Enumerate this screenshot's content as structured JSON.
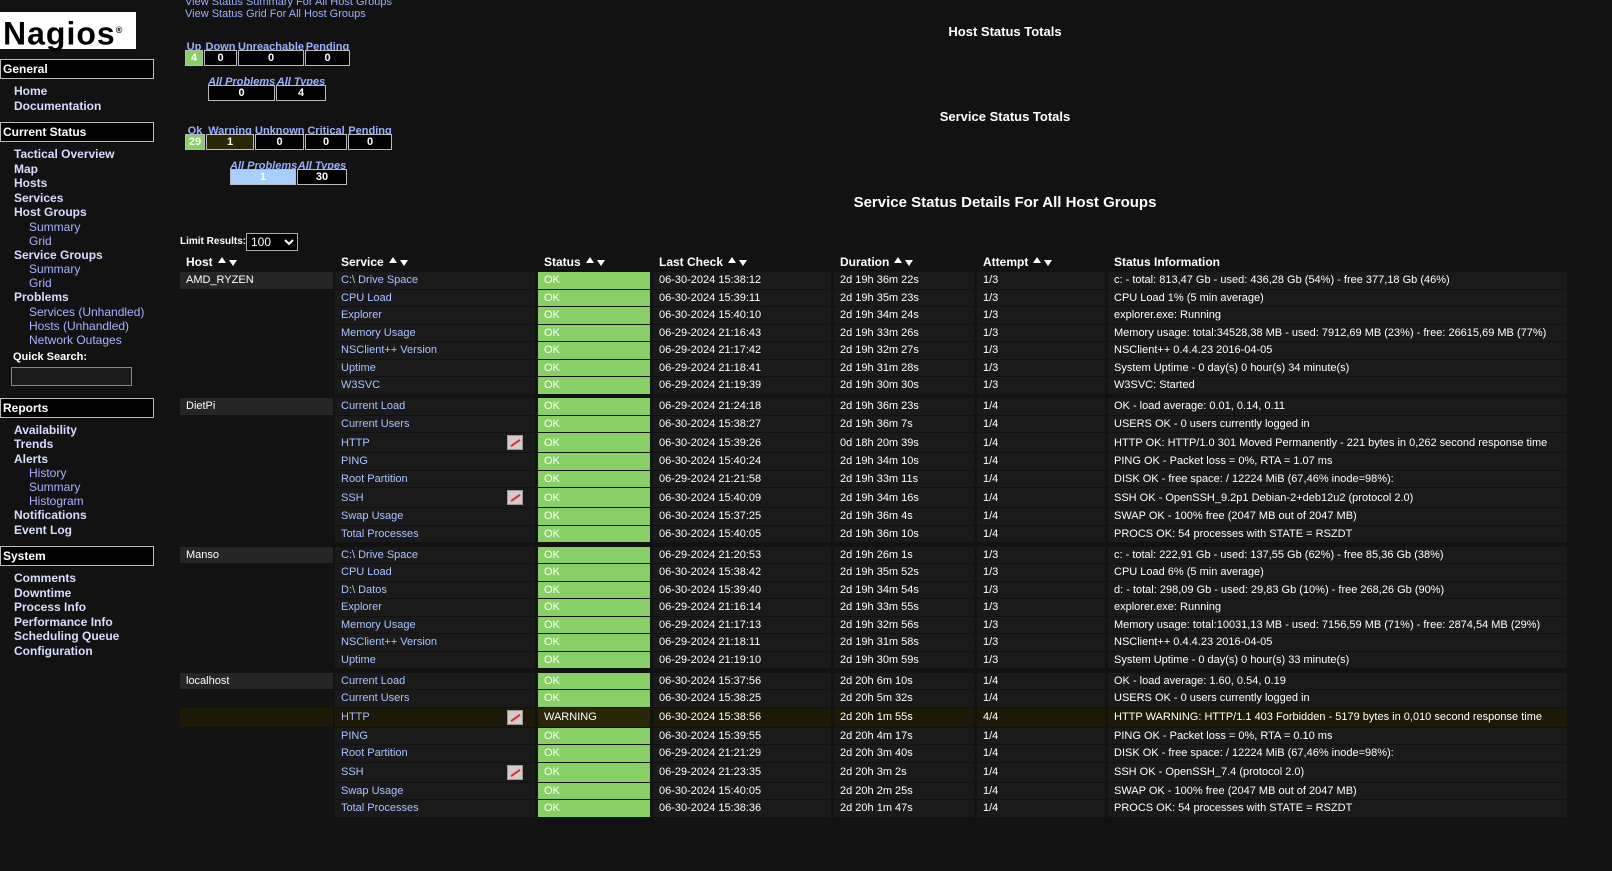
{
  "logo": "Nagios",
  "logo_mark": "®",
  "top_links": [
    "View Status Summary For All Host Groups",
    "View Status Grid For All Host Groups"
  ],
  "sidebar": {
    "quick_search": "Quick Search:",
    "sections": [
      {
        "title": "General",
        "items": [
          {
            "label": "Home"
          },
          {
            "label": "Documentation"
          }
        ]
      },
      {
        "title": "Current Status",
        "items": [
          {
            "label": "Tactical Overview"
          },
          {
            "label": "Map"
          },
          {
            "label": "Hosts"
          },
          {
            "label": "Services"
          },
          {
            "label": "Host Groups",
            "children": [
              "Summary",
              "Grid"
            ]
          },
          {
            "label": "Service Groups",
            "children": [
              "Summary",
              "Grid"
            ]
          },
          {
            "label": "Problems",
            "children": [
              "Services (Unhandled)",
              "Hosts (Unhandled)",
              "Network Outages"
            ]
          }
        ]
      },
      {
        "title": "Reports",
        "items": [
          {
            "label": "Availability"
          },
          {
            "label": "Trends"
          },
          {
            "label": "Alerts",
            "children": [
              "History",
              "Summary",
              "Histogram"
            ]
          },
          {
            "label": "Notifications"
          },
          {
            "label": "Event Log"
          }
        ]
      },
      {
        "title": "System",
        "items": [
          {
            "label": "Comments"
          },
          {
            "label": "Downtime"
          },
          {
            "label": "Process Info"
          },
          {
            "label": "Performance Info"
          },
          {
            "label": "Scheduling Queue"
          },
          {
            "label": "Configuration"
          }
        ]
      }
    ]
  },
  "host_totals": {
    "title": "Host Status Totals",
    "headers": [
      "Up",
      "Down",
      "Unreachable",
      "Pending"
    ],
    "values": [
      4,
      0,
      0,
      0
    ],
    "summary_headers": [
      "All Problems",
      "All Types"
    ],
    "summary_values": [
      0,
      4
    ]
  },
  "service_totals": {
    "title": "Service Status Totals",
    "headers": [
      "Ok",
      "Warning",
      "Unknown",
      "Critical",
      "Pending"
    ],
    "values": [
      29,
      1,
      0,
      0,
      0
    ],
    "summary_headers": [
      "All Problems",
      "All Types"
    ],
    "summary_values": [
      1,
      30
    ]
  },
  "table": {
    "title": "Service Status Details For All Host Groups",
    "limit_label": "Limit Results:",
    "limit_value": 100,
    "headers": [
      "Host",
      "Service",
      "Status",
      "Last Check",
      "Duration",
      "Attempt",
      "Status Information"
    ],
    "groups": [
      {
        "host": "AMD_RYZEN",
        "rows": [
          {
            "service": "C:\\ Drive Space",
            "status": "OK",
            "last_check": "06-30-2024 15:38:12",
            "duration": "2d 19h 36m 22s",
            "attempt": "1/3",
            "info": "c: - total: 813,47 Gb - used: 436,28 Gb (54%) - free 377,18 Gb (46%)"
          },
          {
            "service": "CPU Load",
            "status": "OK",
            "last_check": "06-30-2024 15:39:11",
            "duration": "2d 19h 35m 23s",
            "attempt": "1/3",
            "info": "CPU Load 1% (5 min average)"
          },
          {
            "service": "Explorer",
            "status": "OK",
            "last_check": "06-30-2024 15:40:10",
            "duration": "2d 19h 34m 24s",
            "attempt": "1/3",
            "info": "explorer.exe: Running"
          },
          {
            "service": "Memory Usage",
            "status": "OK",
            "last_check": "06-29-2024 21:16:43",
            "duration": "2d 19h 33m 26s",
            "attempt": "1/3",
            "info": "Memory usage: total:34528,38 MB - used: 7912,69 MB (23%) - free: 26615,69 MB (77%)"
          },
          {
            "service": "NSClient++ Version",
            "status": "OK",
            "last_check": "06-29-2024 21:17:42",
            "duration": "2d 19h 32m 27s",
            "attempt": "1/3",
            "info": "NSClient++ 0.4.4.23 2016-04-05"
          },
          {
            "service": "Uptime",
            "status": "OK",
            "last_check": "06-29-2024 21:18:41",
            "duration": "2d 19h 31m 28s",
            "attempt": "1/3",
            "info": "System Uptime - 0 day(s) 0 hour(s) 34 minute(s)"
          },
          {
            "service": "W3SVC",
            "status": "OK",
            "last_check": "06-29-2024 21:19:39",
            "duration": "2d 19h 30m 30s",
            "attempt": "1/3",
            "info": "W3SVC: Started"
          }
        ]
      },
      {
        "host": "DietPi",
        "rows": [
          {
            "service": "Current Load",
            "status": "OK",
            "last_check": "06-29-2024 21:24:18",
            "duration": "2d 19h 36m 23s",
            "attempt": "1/4",
            "info": "OK - load average: 0.01, 0.14, 0.11"
          },
          {
            "service": "Current Users",
            "status": "OK",
            "last_check": "06-30-2024 15:38:27",
            "duration": "2d 19h 36m 7s",
            "attempt": "1/4",
            "info": "USERS OK - 0 users currently logged in"
          },
          {
            "service": "HTTP",
            "graph": true,
            "status": "OK",
            "last_check": "06-30-2024 15:39:26",
            "duration": "0d 18h 20m 39s",
            "attempt": "1/4",
            "info": "HTTP OK: HTTP/1.0 301 Moved Permanently - 221 bytes in 0,262 second response time"
          },
          {
            "service": "PING",
            "status": "OK",
            "last_check": "06-30-2024 15:40:24",
            "duration": "2d 19h 34m 10s",
            "attempt": "1/4",
            "info": "PING OK - Packet loss = 0%, RTA = 1.07 ms"
          },
          {
            "service": "Root Partition",
            "status": "OK",
            "last_check": "06-29-2024 21:21:58",
            "duration": "2d 19h 33m 11s",
            "attempt": "1/4",
            "info": "DISK OK - free space: / 12224 MiB (67,46% inode=98%):"
          },
          {
            "service": "SSH",
            "graph": true,
            "status": "OK",
            "last_check": "06-30-2024 15:40:09",
            "duration": "2d 19h 34m 16s",
            "attempt": "1/4",
            "info": "SSH OK - OpenSSH_9.2p1 Debian-2+deb12u2 (protocol 2.0)"
          },
          {
            "service": "Swap Usage",
            "status": "OK",
            "last_check": "06-30-2024 15:37:25",
            "duration": "2d 19h 36m 4s",
            "attempt": "1/4",
            "info": "SWAP OK - 100% free (2047 MB out of 2047 MB)"
          },
          {
            "service": "Total Processes",
            "status": "OK",
            "last_check": "06-30-2024 15:40:05",
            "duration": "2d 19h 36m 10s",
            "attempt": "1/4",
            "info": "PROCS OK: 54 processes with STATE = RSZDT"
          }
        ]
      },
      {
        "host": "Manso",
        "rows": [
          {
            "service": "C:\\ Drive Space",
            "status": "OK",
            "last_check": "06-29-2024 21:20:53",
            "duration": "2d 19h 26m 1s",
            "attempt": "1/3",
            "info": "c: - total: 222,91 Gb - used: 137,55 Gb (62%) - free 85,36 Gb (38%)"
          },
          {
            "service": "CPU Load",
            "status": "OK",
            "last_check": "06-30-2024 15:38:42",
            "duration": "2d 19h 35m 52s",
            "attempt": "1/3",
            "info": "CPU Load 6% (5 min average)"
          },
          {
            "service": "D:\\ Datos",
            "status": "OK",
            "last_check": "06-30-2024 15:39:40",
            "duration": "2d 19h 34m 54s",
            "attempt": "1/3",
            "info": "d: - total: 298,09 Gb - used: 29,83 Gb (10%) - free 268,26 Gb (90%)"
          },
          {
            "service": "Explorer",
            "status": "OK",
            "last_check": "06-29-2024 21:16:14",
            "duration": "2d 19h 33m 55s",
            "attempt": "1/3",
            "info": "explorer.exe: Running"
          },
          {
            "service": "Memory Usage",
            "status": "OK",
            "last_check": "06-29-2024 21:17:13",
            "duration": "2d 19h 32m 56s",
            "attempt": "1/3",
            "info": "Memory usage: total:10031,13 MB - used: 7156,59 MB (71%) - free: 2874,54 MB (29%)"
          },
          {
            "service": "NSClient++ Version",
            "status": "OK",
            "last_check": "06-29-2024 21:18:11",
            "duration": "2d 19h 31m 58s",
            "attempt": "1/3",
            "info": "NSClient++ 0.4.4.23 2016-04-05"
          },
          {
            "service": "Uptime",
            "status": "OK",
            "last_check": "06-29-2024 21:19:10",
            "duration": "2d 19h 30m 59s",
            "attempt": "1/3",
            "info": "System Uptime - 0 day(s) 0 hour(s) 33 minute(s)"
          }
        ]
      },
      {
        "host": "localhost",
        "rows": [
          {
            "service": "Current Load",
            "status": "OK",
            "last_check": "06-30-2024 15:37:56",
            "duration": "2d 20h 6m 10s",
            "attempt": "1/4",
            "info": "OK - load average: 1.60, 0.54, 0.19"
          },
          {
            "service": "Current Users",
            "status": "OK",
            "last_check": "06-30-2024 15:38:25",
            "duration": "2d 20h 5m 32s",
            "attempt": "1/4",
            "info": "USERS OK - 0 users currently logged in"
          },
          {
            "service": "HTTP",
            "graph": true,
            "status": "WARNING",
            "last_check": "06-30-2024 15:38:56",
            "duration": "2d 20h 1m 55s",
            "attempt": "4/4",
            "info": "HTTP WARNING: HTTP/1.1 403 Forbidden - 5179 bytes in 0,010 second response time"
          },
          {
            "service": "PING",
            "status": "OK",
            "last_check": "06-30-2024 15:39:55",
            "duration": "2d 20h 4m 17s",
            "attempt": "1/4",
            "info": "PING OK - Packet loss = 0%, RTA = 0.10 ms"
          },
          {
            "service": "Root Partition",
            "status": "OK",
            "last_check": "06-29-2024 21:21:29",
            "duration": "2d 20h 3m 40s",
            "attempt": "1/4",
            "info": "DISK OK - free space: / 12224 MiB (67,46% inode=98%):"
          },
          {
            "service": "SSH",
            "graph": true,
            "status": "OK",
            "last_check": "06-29-2024 21:23:35",
            "duration": "2d 20h 3m 2s",
            "attempt": "1/4",
            "info": "SSH OK - OpenSSH_7.4 (protocol 2.0)"
          },
          {
            "service": "Swap Usage",
            "status": "OK",
            "last_check": "06-30-2024 15:40:05",
            "duration": "2d 20h 2m 25s",
            "attempt": "1/4",
            "info": "SWAP OK - 100% free (2047 MB out of 2047 MB)"
          },
          {
            "service": "Total Processes",
            "status": "OK",
            "last_check": "06-30-2024 15:38:36",
            "duration": "2d 20h 1m 47s",
            "attempt": "1/4",
            "info": "PROCS OK: 54 processes with STATE = RSZDT"
          }
        ]
      }
    ]
  }
}
